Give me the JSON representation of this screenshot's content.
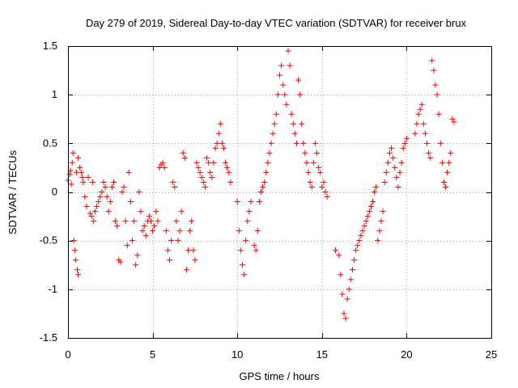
{
  "chart_data": {
    "type": "scatter",
    "title": "Day 279 of 2019, Sidereal Day-to-day VTEC variation (SDTVAR) for receiver brux",
    "xlabel": "GPS time / hours",
    "ylabel": "SDTVAR / TECUs",
    "xlim": [
      0,
      25
    ],
    "ylim": [
      -1.5,
      1.5
    ],
    "grid": true,
    "marker": "plus",
    "color": "#ff0000",
    "xticks": [
      0,
      5,
      10,
      15,
      20,
      25
    ],
    "xtick_labels": [
      "0",
      "5",
      "10",
      "15",
      "20",
      "25"
    ],
    "yticks": [
      -1.5,
      -1,
      -0.5,
      0,
      0.5,
      1,
      1.5
    ],
    "ytick_labels": [
      "-1.5",
      "-1",
      "-0.5",
      "0",
      "0.5",
      "1",
      "1.5"
    ],
    "series": [
      {
        "name": "SDTVAR",
        "points": [
          [
            0.0,
            0.12
          ],
          [
            0.1,
            0.18
          ],
          [
            0.15,
            0.22
          ],
          [
            0.2,
            0.08
          ],
          [
            0.25,
            0.3
          ],
          [
            0.3,
            0.4
          ],
          [
            0.35,
            -0.5
          ],
          [
            0.4,
            -0.6
          ],
          [
            0.45,
            -0.7
          ],
          [
            0.5,
            0.2
          ],
          [
            0.55,
            -0.8
          ],
          [
            0.6,
            -0.85
          ],
          [
            0.6,
            0.35
          ],
          [
            0.7,
            0.25
          ],
          [
            0.8,
            0.2
          ],
          [
            0.85,
            0.15
          ],
          [
            0.9,
            0.1
          ],
          [
            1.0,
            -0.05
          ],
          [
            1.1,
            -0.15
          ],
          [
            1.2,
            0.15
          ],
          [
            1.3,
            -0.22
          ],
          [
            1.4,
            -0.25
          ],
          [
            1.45,
            0.1
          ],
          [
            1.5,
            -0.3
          ],
          [
            1.6,
            -0.2
          ],
          [
            1.7,
            -0.15
          ],
          [
            1.8,
            -0.1
          ],
          [
            1.9,
            -0.05
          ],
          [
            2.0,
            0.0
          ],
          [
            2.1,
            0.1
          ],
          [
            2.2,
            0.05
          ],
          [
            2.3,
            -0.05
          ],
          [
            2.4,
            -0.2
          ],
          [
            2.5,
            -0.1
          ],
          [
            2.6,
            0.05
          ],
          [
            2.7,
            0.1
          ],
          [
            2.8,
            -0.3
          ],
          [
            2.9,
            -0.35
          ],
          [
            3.0,
            -0.7
          ],
          [
            3.1,
            -0.72
          ],
          [
            3.2,
            0.0
          ],
          [
            3.3,
            0.05
          ],
          [
            3.4,
            -0.3
          ],
          [
            3.5,
            -0.55
          ],
          [
            3.6,
            0.2
          ],
          [
            3.7,
            -0.1
          ],
          [
            3.8,
            -0.5
          ],
          [
            3.9,
            -0.3
          ],
          [
            4.0,
            -0.75
          ],
          [
            4.1,
            -0.65
          ],
          [
            4.2,
            0.0
          ],
          [
            4.3,
            -0.2
          ],
          [
            4.4,
            -0.4
          ],
          [
            4.5,
            -0.35
          ],
          [
            4.6,
            -0.45
          ],
          [
            4.7,
            -0.3
          ],
          [
            4.8,
            -0.25
          ],
          [
            4.9,
            -0.3
          ],
          [
            5.0,
            -0.4
          ],
          [
            5.1,
            -0.35
          ],
          [
            5.2,
            -0.2
          ],
          [
            5.3,
            -0.3
          ],
          [
            5.4,
            0.25
          ],
          [
            5.5,
            0.28
          ],
          [
            5.6,
            0.3
          ],
          [
            5.7,
            0.25
          ],
          [
            5.8,
            -0.4
          ],
          [
            5.9,
            -0.6
          ],
          [
            6.0,
            -0.7
          ],
          [
            6.1,
            -0.5
          ],
          [
            6.2,
            0.1
          ],
          [
            6.3,
            0.05
          ],
          [
            6.4,
            -0.3
          ],
          [
            6.5,
            -0.5
          ],
          [
            6.6,
            -0.4
          ],
          [
            6.7,
            -0.2
          ],
          [
            6.8,
            0.4
          ],
          [
            6.9,
            0.35
          ],
          [
            7.0,
            -0.8
          ],
          [
            7.1,
            -0.6
          ],
          [
            7.2,
            -0.4
          ],
          [
            7.3,
            -0.3
          ],
          [
            7.4,
            -0.6
          ],
          [
            7.5,
            -0.7
          ],
          [
            7.6,
            0.3
          ],
          [
            7.7,
            0.25
          ],
          [
            7.8,
            0.2
          ],
          [
            7.9,
            0.15
          ],
          [
            8.0,
            0.1
          ],
          [
            8.1,
            0.05
          ],
          [
            8.2,
            0.35
          ],
          [
            8.3,
            0.3
          ],
          [
            8.4,
            0.2
          ],
          [
            8.5,
            0.15
          ],
          [
            8.6,
            0.3
          ],
          [
            8.7,
            0.45
          ],
          [
            8.8,
            0.5
          ],
          [
            8.9,
            0.6
          ],
          [
            9.0,
            0.7
          ],
          [
            9.1,
            0.5
          ],
          [
            9.2,
            0.45
          ],
          [
            9.3,
            0.3
          ],
          [
            9.4,
            0.25
          ],
          [
            9.5,
            0.2
          ],
          [
            9.6,
            0.1
          ],
          [
            10.0,
            -0.1
          ],
          [
            10.1,
            -0.4
          ],
          [
            10.2,
            -0.6
          ],
          [
            10.3,
            -0.75
          ],
          [
            10.4,
            -0.85
          ],
          [
            10.5,
            -0.5
          ],
          [
            10.6,
            -0.3
          ],
          [
            10.7,
            -0.2
          ],
          [
            10.8,
            -0.1
          ],
          [
            11.0,
            -0.55
          ],
          [
            11.1,
            -0.6
          ],
          [
            11.2,
            -0.4
          ],
          [
            11.3,
            -0.1
          ],
          [
            11.4,
            0.0
          ],
          [
            11.5,
            0.05
          ],
          [
            11.6,
            0.1
          ],
          [
            11.7,
            0.2
          ],
          [
            11.8,
            0.3
          ],
          [
            11.9,
            0.4
          ],
          [
            12.0,
            0.5
          ],
          [
            12.1,
            0.6
          ],
          [
            12.2,
            0.7
          ],
          [
            12.3,
            0.8
          ],
          [
            12.4,
            1.0
          ],
          [
            12.5,
            1.2
          ],
          [
            12.6,
            1.3
          ],
          [
            12.7,
            1.1
          ],
          [
            12.8,
            1.0
          ],
          [
            12.9,
            0.9
          ],
          [
            13.0,
            1.45
          ],
          [
            13.1,
            1.3
          ],
          [
            13.2,
            0.8
          ],
          [
            13.3,
            0.7
          ],
          [
            13.4,
            0.6
          ],
          [
            13.5,
            0.5
          ],
          [
            13.6,
            1.15
          ],
          [
            13.7,
            1.0
          ],
          [
            13.8,
            0.7
          ],
          [
            13.9,
            0.5
          ],
          [
            14.0,
            0.4
          ],
          [
            14.1,
            0.3
          ],
          [
            14.2,
            0.2
          ],
          [
            14.3,
            0.1
          ],
          [
            14.4,
            0.05
          ],
          [
            14.5,
            0.3
          ],
          [
            14.6,
            0.5
          ],
          [
            14.7,
            0.4
          ],
          [
            14.8,
            0.25
          ],
          [
            14.9,
            0.2
          ],
          [
            15.0,
            0.05
          ],
          [
            15.1,
            0.1
          ],
          [
            15.2,
            0.0
          ],
          [
            15.3,
            -0.05
          ],
          [
            15.8,
            -0.6
          ],
          [
            16.0,
            -0.65
          ],
          [
            16.1,
            -0.85
          ],
          [
            16.2,
            -1.05
          ],
          [
            16.3,
            -1.25
          ],
          [
            16.4,
            -1.3
          ],
          [
            16.5,
            -1.1
          ],
          [
            16.6,
            -1.0
          ],
          [
            16.7,
            -0.9
          ],
          [
            16.8,
            -0.8
          ],
          [
            16.9,
            -0.7
          ],
          [
            17.0,
            -0.6
          ],
          [
            17.1,
            -0.55
          ],
          [
            17.2,
            -0.5
          ],
          [
            17.3,
            -0.45
          ],
          [
            17.4,
            -0.4
          ],
          [
            17.5,
            -0.35
          ],
          [
            17.6,
            -0.3
          ],
          [
            17.7,
            -0.25
          ],
          [
            17.8,
            -0.2
          ],
          [
            17.9,
            -0.15
          ],
          [
            18.0,
            -0.1
          ],
          [
            18.1,
            0.0
          ],
          [
            18.2,
            0.05
          ],
          [
            18.3,
            -0.5
          ],
          [
            18.4,
            -0.4
          ],
          [
            18.5,
            -0.3
          ],
          [
            18.6,
            -0.2
          ],
          [
            18.7,
            0.1
          ],
          [
            18.8,
            0.2
          ],
          [
            18.9,
            0.3
          ],
          [
            19.0,
            0.4
          ],
          [
            19.1,
            0.45
          ],
          [
            19.2,
            0.35
          ],
          [
            19.3,
            0.25
          ],
          [
            19.4,
            0.15
          ],
          [
            19.5,
            0.05
          ],
          [
            19.6,
            0.2
          ],
          [
            19.7,
            0.3
          ],
          [
            19.8,
            0.45
          ],
          [
            19.9,
            0.5
          ],
          [
            20.0,
            0.55
          ],
          [
            20.5,
            0.6
          ],
          [
            20.6,
            0.7
          ],
          [
            20.7,
            0.8
          ],
          [
            20.8,
            0.85
          ],
          [
            20.9,
            0.9
          ],
          [
            21.0,
            0.7
          ],
          [
            21.1,
            0.6
          ],
          [
            21.2,
            0.5
          ],
          [
            21.3,
            0.4
          ],
          [
            21.4,
            0.35
          ],
          [
            21.5,
            1.35
          ],
          [
            21.6,
            1.25
          ],
          [
            21.7,
            1.1
          ],
          [
            21.8,
            1.0
          ],
          [
            21.9,
            0.8
          ],
          [
            22.0,
            0.5
          ],
          [
            22.1,
            0.3
          ],
          [
            22.2,
            0.1
          ],
          [
            22.3,
            0.05
          ],
          [
            22.4,
            0.2
          ],
          [
            22.5,
            0.3
          ],
          [
            22.6,
            0.4
          ],
          [
            22.7,
            0.75
          ],
          [
            22.8,
            0.72
          ]
        ]
      }
    ]
  }
}
